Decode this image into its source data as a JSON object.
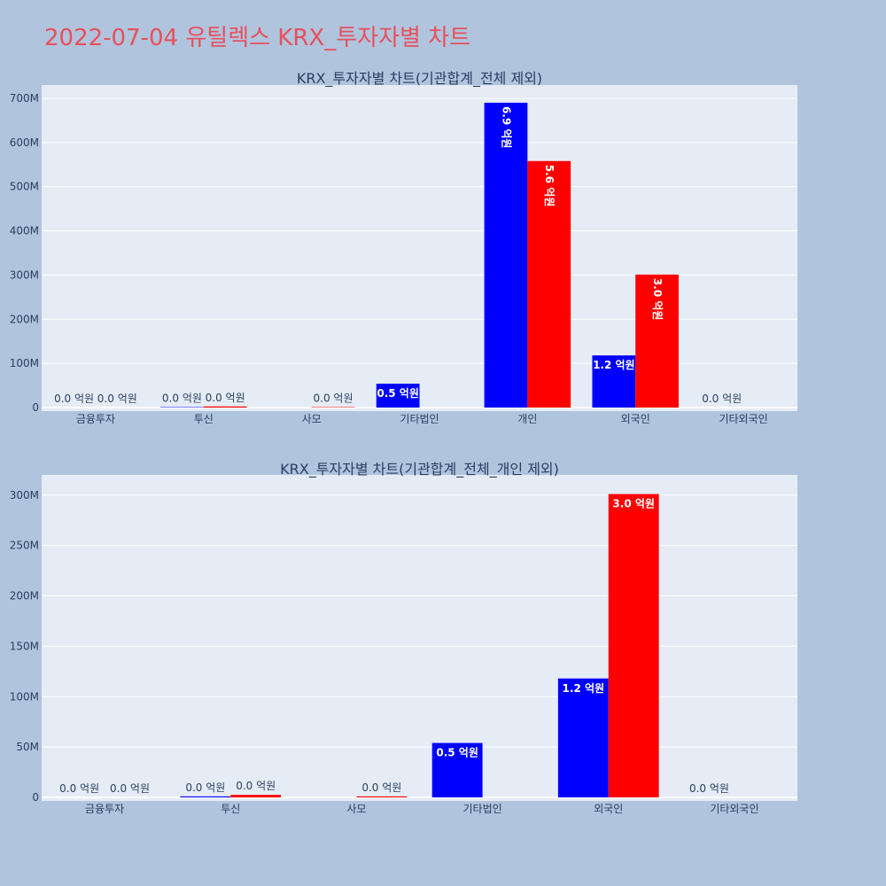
{
  "page": {
    "title": "2022-07-04 유틸렉스 KRX_투자자별 차트",
    "background": "#b0c4de",
    "title_color": "#e8505b",
    "plot_background": "#e5ecf6",
    "buy_color": "#0000ff",
    "sell_color": "#ff0000"
  },
  "chart_data": [
    {
      "type": "bar",
      "title": "KRX_투자자별 차트(기관합계_전체 제외)",
      "categories": [
        "금융투자",
        "투신",
        "사모",
        "기타법인",
        "개인",
        "외국인",
        "기타외국인"
      ],
      "ylim": [
        0,
        730000000
      ],
      "yticks": [
        0,
        100000000,
        200000000,
        300000000,
        400000000,
        500000000,
        600000000,
        700000000
      ],
      "ytick_labels": [
        "0",
        "100M",
        "200M",
        "300M",
        "400M",
        "500M",
        "600M",
        "700M"
      ],
      "grid": true,
      "label_style": "rotated",
      "series": [
        {
          "color": "#0000ff",
          "values": [
            0,
            1000000,
            null,
            54000000,
            690000000,
            118000000,
            0
          ],
          "labels": [
            "0.0 억원",
            "0.0 억원",
            "",
            "0.5 억원",
            "6.9 억원",
            "1.2 억원",
            "0.0 억원"
          ]
        },
        {
          "color": "#ff0000",
          "values": [
            0,
            2500000,
            1000000,
            null,
            558000000,
            301000000,
            null
          ],
          "labels": [
            "0.0 억원",
            "0.0 억원",
            "0.0 억원",
            "",
            "5.6 억원",
            "3.0 억원",
            ""
          ]
        }
      ]
    },
    {
      "type": "bar",
      "title": "KRX_투자자별 차트(기관합계_전체_개인 제외)",
      "categories": [
        "금융투자",
        "투신",
        "사모",
        "기타법인",
        "외국인",
        "기타외국인"
      ],
      "ylim": [
        0,
        320000000
      ],
      "yticks": [
        0,
        50000000,
        100000000,
        150000000,
        200000000,
        250000000,
        300000000
      ],
      "ytick_labels": [
        "0",
        "50M",
        "100M",
        "150M",
        "200M",
        "250M",
        "300M"
      ],
      "grid": true,
      "label_style": "horizontal",
      "series": [
        {
          "color": "#0000ff",
          "values": [
            0,
            1000000,
            null,
            54000000,
            118000000,
            0
          ],
          "labels": [
            "0.0 억원",
            "0.0 억원",
            "",
            "0.5 억원",
            "1.2 억원",
            "0.0 억원"
          ]
        },
        {
          "color": "#ff0000",
          "values": [
            0,
            2500000,
            1000000,
            null,
            301000000,
            null
          ],
          "labels": [
            "0.0 억원",
            "0.0 억원",
            "0.0 억원",
            "",
            "3.0 억원",
            ""
          ]
        }
      ]
    }
  ]
}
